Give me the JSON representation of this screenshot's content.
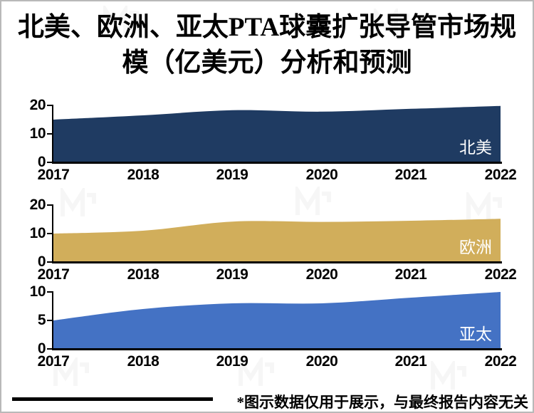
{
  "title": {
    "line1": "北美、欧洲、亚太PTA球囊扩张导管市场规",
    "line2": "模（亿美元）分析和预测"
  },
  "footer": {
    "note": "*图示数据仅用于展示，与最终报告内容无关"
  },
  "icons": {
    "watermark_logo": "zigzag-m-mark"
  },
  "colors": {
    "north_america": "#1F3B62",
    "europe": "#D1AE5B",
    "asia_pacific": "#4472C4",
    "axis": "#000000",
    "region_label_text": "#ffffff"
  },
  "chart_data": [
    {
      "type": "area",
      "name": "north-america",
      "region_label": "北美",
      "categories": [
        "2017",
        "2018",
        "2019",
        "2020",
        "2021",
        "2022"
      ],
      "values": [
        15,
        16.5,
        18.3,
        17.8,
        18.8,
        19.8
      ],
      "ylim": [
        0,
        20
      ],
      "yticks": [
        20,
        10,
        0
      ],
      "color": "#1F3B62",
      "grid": false,
      "legend_position": "inside-right"
    },
    {
      "type": "area",
      "name": "europe",
      "region_label": "欧洲",
      "categories": [
        "2017",
        "2018",
        "2019",
        "2020",
        "2021",
        "2022"
      ],
      "values": [
        10,
        11,
        14.2,
        14.1,
        14.5,
        15.2
      ],
      "ylim": [
        0,
        20
      ],
      "yticks": [
        20,
        10,
        0
      ],
      "color": "#D1AE5B",
      "grid": false,
      "legend_position": "inside-right"
    },
    {
      "type": "area",
      "name": "asia-pacific",
      "region_label": "亚太",
      "categories": [
        "2017",
        "2018",
        "2019",
        "2020",
        "2021",
        "2022"
      ],
      "values": [
        5,
        7,
        8,
        8,
        9,
        10
      ],
      "ylim": [
        0,
        10
      ],
      "yticks": [
        10,
        5,
        0
      ],
      "color": "#4472C4",
      "grid": false,
      "legend_position": "inside-right"
    }
  ]
}
